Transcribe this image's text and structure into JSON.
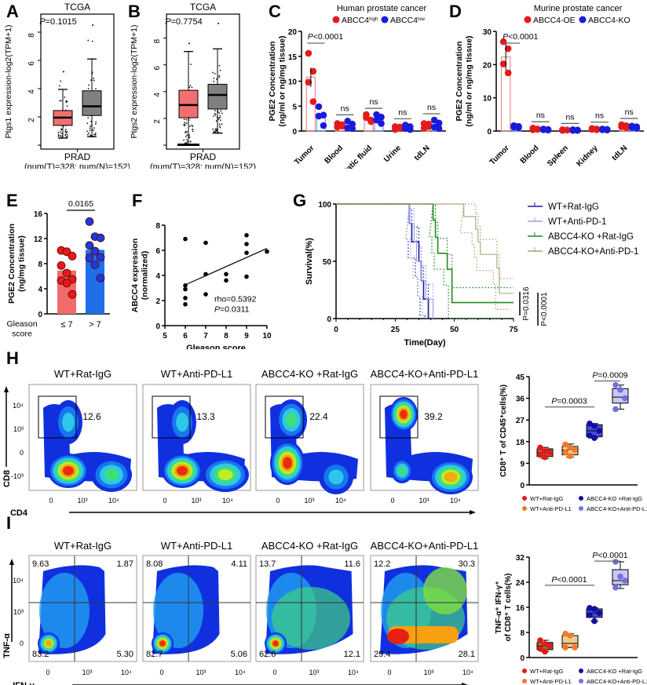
{
  "panel_labels": [
    "A",
    "B",
    "C",
    "D",
    "E",
    "F",
    "G",
    "H",
    "I"
  ],
  "chart_data": [
    {
      "id": "A",
      "type": "box",
      "title": "TCGA",
      "ylabel": "Ptgs1 expression-log2(TPM+1)",
      "xlabel": "PRAD",
      "xsub": "(num(T)=328; num(N)=152)",
      "annotation": "P=0.1015",
      "ylim": [
        0,
        9
      ],
      "yticks": [
        2,
        4,
        6,
        8
      ],
      "series": [
        {
          "name": "Tumor",
          "color": "#f07070",
          "q1": 1.4,
          "median": 1.95,
          "q3": 2.45,
          "whisker_low": 0.5,
          "whisker_high": 3.95,
          "max_point": 5.2
        },
        {
          "name": "Normal",
          "color": "#808080",
          "q1": 2.1,
          "median": 2.75,
          "q3": 3.85,
          "whisker_low": 0.6,
          "whisker_high": 6.1,
          "max_point": 8.5
        }
      ]
    },
    {
      "id": "B",
      "type": "box",
      "title": "TCGA",
      "ylabel": "Ptgs2 expression-log2(TPM+1)",
      "xlabel": "PRAD",
      "xsub": "(num(T)=328; num(N)=152)",
      "annotation": "P=0.7754",
      "ylim": [
        0,
        9.5
      ],
      "yticks": [
        2,
        4,
        6,
        8
      ],
      "series": [
        {
          "name": "Tumor",
          "color": "#f07070",
          "q1": 2.05,
          "median": 3.0,
          "q3": 4.1,
          "whisker_low": 0,
          "whisker_high": 7.0,
          "max_point": 7.6
        },
        {
          "name": "Normal",
          "color": "#808080",
          "q1": 2.7,
          "median": 3.75,
          "q3": 4.55,
          "whisker_low": 0.9,
          "whisker_high": 7.2,
          "max_point": 9.1
        }
      ]
    },
    {
      "id": "C",
      "type": "bar",
      "title": "Human prostate cancer",
      "ylabel": "PGE2 Concentration\n(ng/ml or ng/mg tissue)",
      "ylim": [
        0,
        20
      ],
      "yticks": [
        0,
        5,
        10,
        15,
        20
      ],
      "categories": [
        "Tumor",
        "Blood",
        "Prostatic fluid",
        "Urine",
        "tdLN"
      ],
      "series": [
        {
          "name": "ABCC4high",
          "color": "#e31a1c",
          "values": [
            10.8,
            1.2,
            2.5,
            0.7,
            1.2
          ],
          "points": [
            [
              15.6,
              12.0,
              9.8,
              5.9
            ],
            [
              1.5,
              1.0,
              0.8,
              1.3
            ],
            [
              3.3,
              2.2,
              2.7,
              1.9
            ],
            [
              0.9,
              0.5,
              0.3,
              0.8
            ],
            [
              1.5,
              0.9,
              0.6,
              1.4
            ]
          ]
        },
        {
          "name": "ABCC4low",
          "color": "#1a1adc",
          "values": [
            3.0,
            1.1,
            2.5,
            0.8,
            1.2
          ],
          "points": [
            [
              4.9,
              3.2,
              3.0,
              1.1
            ],
            [
              2.0,
              1.4,
              0.6,
              0.5
            ],
            [
              3.3,
              2.8,
              2.2,
              1.5
            ],
            [
              1.2,
              0.9,
              0.5,
              0.3
            ],
            [
              2.2,
              1.6,
              0.8,
              0.5
            ]
          ]
        }
      ],
      "annotations": [
        "P<0.0001",
        "ns",
        "ns",
        "ns",
        "ns"
      ]
    },
    {
      "id": "D",
      "type": "bar",
      "title": "Murine prostate cancer",
      "ylabel": "PGE2 Concentration\n(ng/ml or ng/mg tissue)",
      "ylim": [
        0,
        30
      ],
      "yticks": [
        0,
        10,
        20,
        30
      ],
      "categories": [
        "Tumor",
        "Blood",
        "Spleen",
        "Kidney",
        "tdLN"
      ],
      "series": [
        {
          "name": "ABCC4-OE",
          "color": "#e31a1c",
          "values": [
            22.3,
            0.6,
            0.3,
            0.6,
            1.5
          ],
          "points": [
            [
              26.9,
              24.8,
              20.2,
              17.5
            ],
            [
              0.9,
              0.6,
              0.4,
              0.5
            ],
            [
              0.4,
              0.3,
              0.2,
              0.3
            ],
            [
              0.8,
              0.6,
              0.5,
              0.4
            ],
            [
              1.9,
              1.6,
              1.3,
              1.0
            ]
          ]
        },
        {
          "name": "ABCC4-KO",
          "color": "#1a1adc",
          "values": [
            1.3,
            0.5,
            0.3,
            0.5,
            1.2
          ],
          "points": [
            [
              1.6,
              1.4,
              1.2,
              1.0
            ],
            [
              0.6,
              0.5,
              0.4,
              0.3
            ],
            [
              0.4,
              0.3,
              0.2,
              0.2
            ],
            [
              0.6,
              0.5,
              0.4,
              0.3
            ],
            [
              1.5,
              1.3,
              1.1,
              0.9
            ]
          ]
        }
      ],
      "annotations": [
        "P<0.0001",
        "ns",
        "ns",
        "ns",
        "ns"
      ]
    },
    {
      "id": "E",
      "type": "bar",
      "ylabel": "PGE2 Concentration\n(ng/mg tissue)",
      "xlabel": "Gleason\nscore",
      "ylim": [
        0,
        16
      ],
      "yticks": [
        0,
        4,
        8,
        12,
        16
      ],
      "categories": [
        "≤ 7",
        "> 7"
      ],
      "series": [
        {
          "name": "≤ 7",
          "color": "#f26b6b",
          "value": 6.9,
          "points": [
            10.1,
            9.9,
            9.2,
            7.7,
            6.5,
            5.5,
            5.3,
            4.9,
            3.1
          ]
        },
        {
          "name": "> 7",
          "color": "#1f6fe8",
          "value": 10.2,
          "points": [
            14.7,
            12.3,
            12.1,
            10.9,
            10.0,
            9.0,
            8.9,
            7.8,
            5.7
          ]
        }
      ],
      "annotation": "0.0165"
    },
    {
      "id": "F",
      "type": "scatter",
      "xlabel": "Gleason score",
      "ylabel": "ABCC4  expression\n(normalized)",
      "xlim": [
        5,
        10
      ],
      "ylim": [
        0,
        8
      ],
      "xticks": [
        5,
        6,
        7,
        8,
        9,
        10
      ],
      "yticks": [
        0,
        2,
        4,
        6,
        8
      ],
      "points": [
        [
          6,
          6.9
        ],
        [
          6,
          3.2
        ],
        [
          6,
          2.9
        ],
        [
          6,
          2.2
        ],
        [
          6,
          1.7
        ],
        [
          7,
          6.6
        ],
        [
          7,
          4.1
        ],
        [
          7,
          2.5
        ],
        [
          8,
          4.1
        ],
        [
          8,
          3.6
        ],
        [
          9,
          7.2
        ],
        [
          9,
          6.5
        ],
        [
          9,
          5.8
        ],
        [
          9,
          3.9
        ],
        [
          10,
          5.9
        ]
      ],
      "fit_line": [
        [
          6,
          3.25
        ],
        [
          10,
          6.15
        ]
      ],
      "annotations": [
        "rho=0.5392",
        "P=0.0311"
      ]
    },
    {
      "id": "G",
      "type": "line",
      "subtype": "kaplan-meier",
      "xlabel": "Time(Day)",
      "ylabel": "Survival(%)",
      "xlim": [
        0,
        75
      ],
      "ylim": [
        0,
        100
      ],
      "xticks": [
        0,
        25,
        50,
        75
      ],
      "yticks": [
        0,
        50,
        100
      ],
      "series": [
        {
          "name": "WT+Rat-IgG",
          "color": "#1a1aa8",
          "steps": [
            [
              0,
              100
            ],
            [
              31,
              100
            ],
            [
              31,
              83
            ],
            [
              32,
              83
            ],
            [
              32,
              67
            ],
            [
              35,
              67
            ],
            [
              35,
              50
            ],
            [
              36,
              50
            ],
            [
              36,
              33
            ],
            [
              37,
              33
            ],
            [
              37,
              17
            ],
            [
              39,
              17
            ],
            [
              39,
              0
            ]
          ]
        },
        {
          "name": "WT+Anti-PD-1",
          "color": "#9a9af0",
          "steps": [
            [
              0,
              100
            ],
            [
              31,
              100
            ],
            [
              31,
              83
            ],
            [
              33,
              83
            ],
            [
              33,
              67
            ],
            [
              34,
              67
            ],
            [
              34,
              50
            ],
            [
              36,
              50
            ],
            [
              36,
              33
            ],
            [
              38,
              33
            ],
            [
              38,
              17
            ],
            [
              41,
              17
            ],
            [
              41,
              0
            ]
          ]
        },
        {
          "name": "ABCC4-KO +Rat-IgG",
          "color": "#1f8a1f",
          "steps": [
            [
              0,
              100
            ],
            [
              41,
              100
            ],
            [
              41,
              86
            ],
            [
              42,
              86
            ],
            [
              42,
              71
            ],
            [
              43,
              71
            ],
            [
              43,
              57
            ],
            [
              47,
              57
            ],
            [
              47,
              43
            ],
            [
              49,
              43
            ],
            [
              49,
              14
            ],
            [
              75,
              14
            ]
          ]
        },
        {
          "name": "ABCC4-KO+Anti-PD-1",
          "color": "#a8a070",
          "steps": [
            [
              0,
              100
            ],
            [
              54,
              100
            ],
            [
              54,
              89
            ],
            [
              59,
              89
            ],
            [
              59,
              78
            ],
            [
              60,
              78
            ],
            [
              60,
              67
            ],
            [
              61,
              67
            ],
            [
              61,
              56
            ],
            [
              68,
              56
            ],
            [
              68,
              44
            ],
            [
              69,
              44
            ],
            [
              69,
              22
            ],
            [
              75,
              22
            ]
          ]
        }
      ],
      "annotations": [
        "P=0.0316",
        "P<0.0001"
      ]
    },
    {
      "id": "H-box",
      "type": "box",
      "ylabel": "CD8⁺ T of CD45⁺cells(%)",
      "ylim": [
        0,
        45
      ],
      "yticks": [
        0,
        9,
        18,
        27,
        36,
        45
      ],
      "categories": [
        "WT+Rat-IgG",
        "WT+Anti-PD-L1",
        "ABCC4-KO +Rat-IgG",
        "ABCC4-KO+Anti-PD-L1"
      ],
      "series": [
        {
          "name": "WT+Rat-IgG",
          "color": "#e31a1c",
          "box_color": "#8b7a3a",
          "q1": 11.8,
          "median": 13.5,
          "q3": 15.0,
          "min": 11.0,
          "max": 15.6,
          "points": [
            15.5,
            14.0,
            13.5,
            12.5,
            11.5
          ]
        },
        {
          "name": "WT+Anti-PD-L1",
          "color": "#f07a2a",
          "box_color": "#f5c890",
          "q1": 12.5,
          "median": 14.5,
          "q3": 16.0,
          "min": 11.5,
          "max": 17.0,
          "points": [
            16.8,
            15.5,
            14.5,
            13.5,
            12.0
          ]
        },
        {
          "name": "ABCC4-KO +Rat-IgG",
          "color": "#1010a0",
          "box_color": "#4a4ae0",
          "q1": 20.0,
          "median": 22.5,
          "q3": 25.0,
          "min": 19.5,
          "max": 25.5,
          "points": [
            25.5,
            24.5,
            22.5,
            20.5,
            19.5
          ]
        },
        {
          "name": "ABCC4-KO+Anti-PD-L1",
          "color": "#7070e0",
          "box_color": "#c8c8f8",
          "q1": 34.0,
          "median": 36.5,
          "q3": 40.0,
          "min": 31.5,
          "max": 41.5,
          "points": [
            41.5,
            39.5,
            36.0,
            31.5
          ]
        }
      ],
      "annotations": [
        "P=0.0003",
        "P=0.0009"
      ]
    },
    {
      "id": "I-box",
      "type": "box",
      "ylabel": "TNF-α⁺ IFN-γ⁺\nof CD8⁺ T cells(%)",
      "ylim": [
        0,
        32
      ],
      "yticks": [
        0,
        8,
        16,
        24,
        32
      ],
      "categories": [
        "WT+Rat-IgG",
        "WT+Anti-PD-L1",
        "ABCC4-KO +Rat-IgG",
        "ABCC4-KO+Anti-PD-L1"
      ],
      "series": [
        {
          "name": "WT+Rat-IgG",
          "color": "#e31a1c",
          "box_color": "#8b7a3a",
          "q1": 2.5,
          "median": 3.7,
          "q3": 4.8,
          "min": 1.9,
          "max": 5.5,
          "points": [
            5.5,
            4.3,
            3.7,
            2.8,
            1.9
          ]
        },
        {
          "name": "WT+Anti-PD-L1",
          "color": "#f07a2a",
          "box_color": "#f5c890",
          "q1": 3.2,
          "median": 4.5,
          "q3": 7.0,
          "min": 3.2,
          "max": 7.6,
          "points": [
            7.6,
            7.0,
            3.2,
            3.2
          ]
        },
        {
          "name": "ABCC4-KO +Rat-IgG",
          "color": "#1010a0",
          "box_color": "#4a4ae0",
          "q1": 12.8,
          "median": 14.2,
          "q3": 15.5,
          "min": 11.6,
          "max": 15.8,
          "points": [
            15.8,
            15.5,
            14.2,
            13.5,
            11.6
          ]
        },
        {
          "name": "ABCC4-KO+Anti-PD-L1",
          "color": "#7070e0",
          "box_color": "#c8c8f8",
          "q1": 23.2,
          "median": 24.5,
          "q3": 28.0,
          "min": 22.0,
          "max": 30.5,
          "points": [
            30.5,
            25.8,
            24.5,
            22.3
          ]
        }
      ],
      "annotations": [
        "P<0.0001",
        "P<0.0001"
      ]
    }
  ],
  "flow_H": {
    "yaxis": "CD8",
    "xaxis": "CD4",
    "yticks": [
      "10⁴",
      "10³",
      "0",
      "-10³"
    ],
    "xticks": [
      "0",
      "10³",
      "10⁴"
    ],
    "plots": [
      {
        "title": "WT+Rat-IgG",
        "gate_value": "12.6"
      },
      {
        "title": "WT+Anti-PD-L1",
        "gate_value": "13.3"
      },
      {
        "title": "ABCC4-KO +Rat-IgG",
        "gate_value": "22.4"
      },
      {
        "title": "ABCC4-KO+Anti-PD-L1",
        "gate_value": "39.2"
      }
    ]
  },
  "flow_I": {
    "yaxis": "TNF-α",
    "xaxis": "IFN-γ",
    "yticks": [
      "10⁴",
      "10³",
      "0"
    ],
    "xticks": [
      "0",
      "10³",
      "10⁴"
    ],
    "plots": [
      {
        "title": "WT+Rat-IgG",
        "q": [
          "9.63",
          "1.87",
          "83.2",
          "5.30"
        ]
      },
      {
        "title": "WT+Anti-PD-L1",
        "q": [
          "8.08",
          "4.11",
          "82.7",
          "5.06"
        ]
      },
      {
        "title": "ABCC4-KO +Rat-IgG",
        "q": [
          "13.7",
          "11.6",
          "62.6",
          "12.1"
        ]
      },
      {
        "title": "ABCC4-KO+Anti-PD-L1",
        "q": [
          "12.2",
          "30.3",
          "29.4",
          "28.1"
        ]
      }
    ]
  }
}
